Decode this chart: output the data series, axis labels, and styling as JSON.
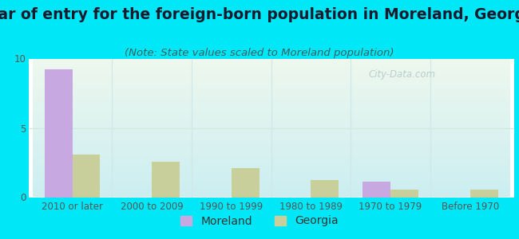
{
  "title": "Year of entry for the foreign-born population in Moreland, Georgia",
  "subtitle": "(Note: State values scaled to Moreland population)",
  "categories": [
    "2010 or later",
    "2000 to 2009",
    "1990 to 1999",
    "1980 to 1989",
    "1970 to 1979",
    "Before 1970"
  ],
  "moreland_values": [
    9.2,
    0,
    0,
    0,
    1.1,
    0
  ],
  "georgia_values": [
    3.1,
    2.55,
    2.1,
    1.25,
    0.55,
    0.52
  ],
  "moreland_color": "#c8a8e0",
  "georgia_color": "#c8cf9a",
  "background_outer": "#00e8f8",
  "ylim": [
    0,
    10
  ],
  "yticks": [
    0,
    5,
    10
  ],
  "bar_width": 0.35,
  "title_fontsize": 13.5,
  "subtitle_fontsize": 9.5,
  "tick_fontsize": 8.5,
  "legend_fontsize": 10,
  "title_color": "#1a1a2e",
  "subtitle_color": "#3a6060",
  "tick_color": "#555555",
  "watermark_color": "#b0c8c8",
  "grid_line_color": "#d0e8e0",
  "separator_color": "#d0e8e8"
}
